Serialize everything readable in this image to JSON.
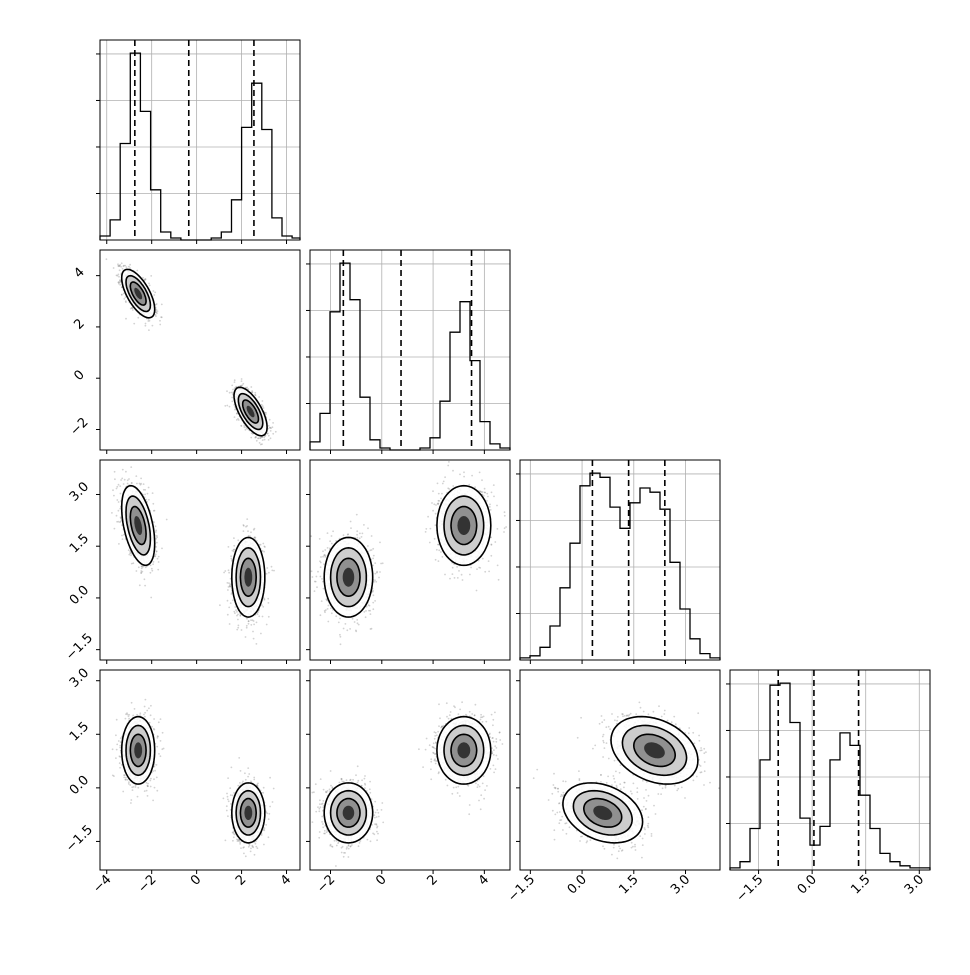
{
  "chart_data": {
    "type": "corner",
    "description_of_visual": "Corner plot of 4 parameters: 1D histograms on the diagonal with dashed quantile lines, 2D density histograms with contours below the diagonal",
    "n_params": 4,
    "colors": {
      "line": "#000000",
      "grid": "#b0b0b0",
      "points": "#7f7f7f",
      "background": "#ffffff"
    },
    "grid": true,
    "params": [
      {
        "range": [
          -4.3,
          4.6
        ],
        "ticks": [
          -4,
          -2,
          0,
          2,
          4
        ],
        "tick_labels": [
          "−4",
          "−2",
          "0",
          "2",
          "4"
        ],
        "modes": [
          {
            "mean": -2.6,
            "sd": 0.35,
            "weight": 0.5
          },
          {
            "mean": 2.4,
            "sd": 0.35,
            "weight": 0.5
          }
        ],
        "quantiles": [
          -2.75,
          -0.35,
          2.55
        ],
        "hist": {
          "edges": [
            -4.3,
            -3.85,
            -3.4,
            -2.95,
            -2.5,
            -2.05,
            -1.6,
            -1.15,
            -0.7,
            -0.25,
            0.2,
            0.65,
            1.1,
            1.55,
            2.0,
            2.45,
            2.9,
            3.35,
            3.8,
            4.25,
            4.6
          ],
          "counts": [
            0.02,
            0.1,
            0.48,
            0.93,
            0.64,
            0.25,
            0.04,
            0.01,
            0,
            0,
            0,
            0.01,
            0.04,
            0.2,
            0.56,
            0.78,
            0.55,
            0.11,
            0.02,
            0.01
          ]
        }
      },
      {
        "range": [
          -2.8,
          5.0
        ],
        "ticks": [
          -2,
          0,
          2,
          4
        ],
        "tick_labels": [
          "−2",
          "0",
          "2",
          "4"
        ],
        "modes": [
          {
            "mean": -1.3,
            "sd": 0.45,
            "weight": 0.5
          },
          {
            "mean": 3.2,
            "sd": 0.5,
            "weight": 0.5
          }
        ],
        "quantiles": [
          -1.5,
          0.75,
          3.5
        ],
        "hist": {
          "edges": [
            -2.8,
            -2.41,
            -2.02,
            -1.63,
            -1.24,
            -0.85,
            -0.46,
            -0.07,
            0.32,
            0.71,
            1.1,
            1.49,
            1.88,
            2.27,
            2.66,
            3.05,
            3.44,
            3.83,
            4.22,
            4.61,
            5.0
          ],
          "counts": [
            0.04,
            0.18,
            0.68,
            0.92,
            0.74,
            0.26,
            0.05,
            0.01,
            0,
            0,
            0,
            0.01,
            0.06,
            0.24,
            0.58,
            0.73,
            0.44,
            0.14,
            0.03,
            0.01
          ]
        }
      },
      {
        "range": [
          -1.8,
          4.0
        ],
        "ticks": [
          -1.5,
          0.0,
          1.5,
          3.0
        ],
        "tick_labels": [
          "−1.5",
          "0.0",
          "1.5",
          "3.0"
        ],
        "modes": [
          {
            "mean": 0.6,
            "sd": 0.55,
            "weight": 0.5
          },
          {
            "mean": 2.1,
            "sd": 0.6,
            "weight": 0.5
          }
        ],
        "quantiles": [
          0.3,
          1.35,
          2.4
        ],
        "hist": {
          "edges": [
            -1.8,
            -1.51,
            -1.22,
            -0.93,
            -0.64,
            -0.35,
            -0.06,
            0.23,
            0.52,
            0.81,
            1.1,
            1.39,
            1.68,
            1.97,
            2.26,
            2.55,
            2.84,
            3.13,
            3.42,
            3.71,
            4.0
          ],
          "counts": [
            0.01,
            0.02,
            0.06,
            0.16,
            0.34,
            0.55,
            0.82,
            0.88,
            0.86,
            0.72,
            0.62,
            0.74,
            0.81,
            0.79,
            0.71,
            0.46,
            0.24,
            0.1,
            0.03,
            0.01
          ]
        }
      },
      {
        "range": [
          -2.3,
          3.3
        ],
        "ticks": [
          -1.5,
          0.0,
          1.5,
          3.0
        ],
        "tick_labels": [
          "−1.5",
          "0.0",
          "1.5",
          "3.0"
        ],
        "modes": [
          {
            "mean": -0.7,
            "sd": 0.4,
            "weight": 0.5
          },
          {
            "mean": 1.05,
            "sd": 0.45,
            "weight": 0.5
          }
        ],
        "quantiles": [
          -0.95,
          0.05,
          1.3
        ],
        "hist": {
          "edges": [
            -2.3,
            -2.02,
            -1.74,
            -1.46,
            -1.18,
            -0.9,
            -0.62,
            -0.34,
            -0.06,
            0.22,
            0.5,
            0.78,
            1.06,
            1.34,
            1.62,
            1.9,
            2.18,
            2.46,
            2.74,
            3.02,
            3.3
          ],
          "counts": [
            0.01,
            0.04,
            0.2,
            0.53,
            0.89,
            0.9,
            0.71,
            0.25,
            0.12,
            0.21,
            0.53,
            0.66,
            0.6,
            0.36,
            0.2,
            0.08,
            0.04,
            0.02,
            0.01,
            0.01
          ]
        }
      }
    ],
    "pairs": [
      {
        "row": 1,
        "col": 0,
        "centers": [
          [
            -2.6,
            3.3
          ],
          [
            2.4,
            -1.3
          ]
        ],
        "sds": [
          [
            0.35,
            0.45
          ],
          [
            0.35,
            0.45
          ]
        ],
        "rho": [
          -0.65,
          -0.65
        ]
      },
      {
        "row": 2,
        "col": 0,
        "centers": [
          [
            -2.6,
            2.1
          ],
          [
            2.3,
            0.6
          ]
        ],
        "sds": [
          [
            0.35,
            0.55
          ],
          [
            0.35,
            0.55
          ]
        ],
        "rho": [
          -0.45,
          0.0
        ]
      },
      {
        "row": 2,
        "col": 1,
        "centers": [
          [
            -1.3,
            0.6
          ],
          [
            3.2,
            2.1
          ]
        ],
        "sds": [
          [
            0.45,
            0.55
          ],
          [
            0.5,
            0.55
          ]
        ],
        "rho": [
          0.0,
          0.0
        ]
      },
      {
        "row": 3,
        "col": 0,
        "centers": [
          [
            -2.6,
            1.05
          ],
          [
            2.3,
            -0.7
          ]
        ],
        "sds": [
          [
            0.35,
            0.45
          ],
          [
            0.35,
            0.4
          ]
        ],
        "rho": [
          0.0,
          0.0
        ]
      },
      {
        "row": 3,
        "col": 1,
        "centers": [
          [
            -1.3,
            -0.7
          ],
          [
            3.2,
            1.05
          ]
        ],
        "sds": [
          [
            0.45,
            0.4
          ],
          [
            0.5,
            0.45
          ]
        ],
        "rho": [
          0.0,
          0.0
        ]
      },
      {
        "row": 3,
        "col": 2,
        "centers": [
          [
            0.6,
            -0.7
          ],
          [
            2.1,
            1.05
          ]
        ],
        "sds": [
          [
            0.55,
            0.4
          ],
          [
            0.6,
            0.45
          ]
        ],
        "rho": [
          -0.3,
          -0.3
        ]
      }
    ]
  }
}
